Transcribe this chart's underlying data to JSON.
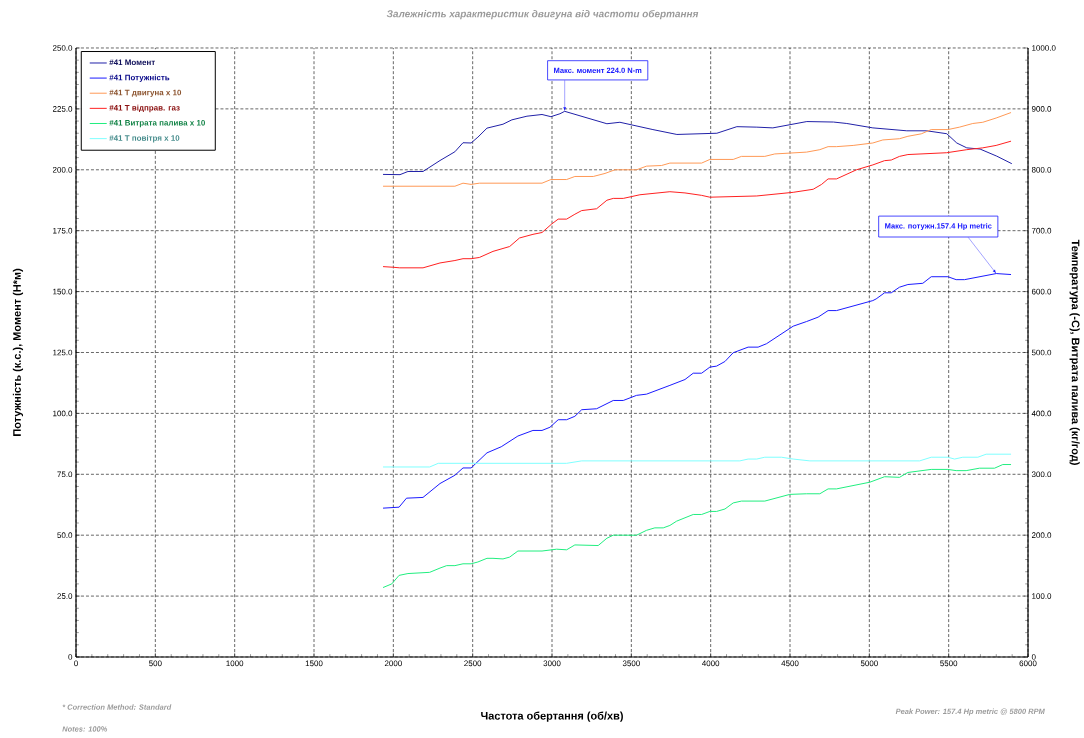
{
  "chart_data": {
    "type": "line",
    "title": "Залежність характеристик двигуна від частоти обертання",
    "xlabel": "Частота обертання (об/хв)",
    "ylabel": "Потужність (к.с.), Момент (Н*м)",
    "y2label": "Температура (-С), Витрата палива (кг/год)",
    "xlim": [
      0,
      6000
    ],
    "xticks": [
      0,
      500,
      1000,
      1500,
      2000,
      2500,
      3000,
      3500,
      4000,
      4500,
      5000,
      5500,
      6000
    ],
    "ylim": [
      0,
      250
    ],
    "yticks": [
      0,
      {
        "value": 25,
        "label": "25.0"
      },
      {
        "value": 50,
        "label": "50.0"
      },
      {
        "value": 75,
        "label": "75.0"
      },
      {
        "value": 100,
        "label": "100.0"
      },
      {
        "value": 125,
        "label": "125.0"
      },
      {
        "value": 150,
        "label": "150.0"
      },
      {
        "value": 175,
        "label": "175.0"
      },
      {
        "value": 200,
        "label": "200.0"
      },
      {
        "value": 225,
        "label": "225.0"
      },
      {
        "value": 250,
        "label": "250.0"
      }
    ],
    "y2lim": [
      0,
      1000
    ],
    "y2ticks": [
      0,
      {
        "value": 100,
        "label": "100.0"
      },
      {
        "value": 200,
        "label": "200.0"
      },
      {
        "value": 300,
        "label": "300.0"
      },
      {
        "value": 400,
        "label": "400.0"
      },
      {
        "value": 500,
        "label": "500.0"
      },
      {
        "value": 600,
        "label": "600.0"
      },
      {
        "value": 700,
        "label": "700.0"
      },
      {
        "value": 800,
        "label": "800.0"
      },
      {
        "value": 900,
        "label": "900.0"
      },
      {
        "value": 1000,
        "label": "1000.0"
      }
    ],
    "grid": true,
    "legend": "top left",
    "series": [
      {
        "name": "#41  Момент",
        "color": "#2020a8",
        "x": [
          1935,
          2042,
          2092,
          2187,
          2294,
          2388,
          2439,
          2490,
          2533,
          2590,
          2691,
          2747,
          2842,
          2937,
          2993,
          3050,
          3080,
          3346,
          3428,
          3636,
          3787,
          4039,
          4165,
          4291,
          4392,
          4606,
          4774,
          4858,
          5022,
          5236,
          5362,
          5488,
          5551,
          5614,
          5698,
          5803,
          5898
        ],
        "values": [
          198.1,
          198,
          199.3,
          199.3,
          203.8,
          207.4,
          211.1,
          211,
          213.4,
          217.1,
          218.7,
          220.5,
          222,
          222.7,
          221.8,
          223,
          224,
          218.9,
          219.5,
          216.5,
          214.5,
          215,
          217.7,
          217.5,
          217.2,
          219.8,
          219.6,
          219,
          217.2,
          216,
          216,
          214.8,
          211,
          209,
          208.5,
          205.6,
          202.5
        ]
      },
      {
        "name": "#41  Потужність",
        "color": "#1a1aff",
        "x": [
          1935,
          2036,
          2083,
          2187,
          2294,
          2388,
          2439,
          2490,
          2590,
          2680,
          2785,
          2880,
          2937,
          2987,
          3039,
          3092,
          3144,
          3187,
          3281,
          3386,
          3449,
          3533,
          3596,
          3743,
          3838,
          3890,
          3943,
          3995,
          4037,
          4090,
          4142,
          4236,
          4299,
          4352,
          4520,
          4604,
          4677,
          4740,
          4793,
          5022,
          5043,
          5096,
          5138,
          5190,
          5243,
          5337,
          5390,
          5495,
          5547,
          5600,
          5800,
          5893
        ],
        "values": [
          61.1,
          61.5,
          65.2,
          65.5,
          71.2,
          74.6,
          77.6,
          77.6,
          83.8,
          86.3,
          90.7,
          93,
          93,
          94.3,
          97.4,
          97.4,
          98.8,
          101.5,
          101.9,
          105.3,
          105.3,
          107.4,
          107.9,
          111.5,
          113.9,
          116.5,
          116.5,
          119,
          119.4,
          121.3,
          124.9,
          127.2,
          127.2,
          128.6,
          135.8,
          137.7,
          139.5,
          142.2,
          142.2,
          146.3,
          147,
          149.5,
          149.5,
          151.8,
          152.9,
          153.4,
          156.1,
          156.1,
          154.9,
          154.9,
          157.4,
          157
        ]
      },
      {
        "name": "#41 T двигуна x 10",
        "color": "#ff9955",
        "axis": "y2",
        "x": [
          1935,
          2388,
          2439,
          2490,
          2542,
          2937,
          2993,
          3092,
          3144,
          3260,
          3334,
          3397,
          3533,
          3596,
          3690,
          3743,
          3943,
          3995,
          4142,
          4194,
          4341,
          4404,
          4604,
          4688,
          4740,
          4793,
          4898,
          5022,
          5085,
          5190,
          5243,
          5327,
          5390,
          5495,
          5568,
          5652,
          5715,
          5799,
          5893
        ],
        "values": [
          773,
          773,
          778,
          776,
          778,
          778,
          784,
          784,
          789,
          789,
          794,
          800,
          800,
          806,
          807,
          811,
          811,
          817,
          817,
          822,
          822,
          826,
          829,
          833,
          838,
          838,
          840,
          844,
          849,
          851,
          855,
          859,
          866,
          866,
          870,
          876,
          878,
          885,
          894
        ]
      },
      {
        "name": "#41 T відправ. газ",
        "color": "#ff2020",
        "axis": "y2",
        "x": [
          1935,
          1997,
          2040,
          2187,
          2294,
          2388,
          2439,
          2490,
          2542,
          2628,
          2733,
          2795,
          2880,
          2937,
          2998,
          3039,
          3092,
          3144,
          3187,
          3281,
          3346,
          3386,
          3449,
          3554,
          3743,
          3838,
          3943,
          3995,
          4290,
          4520,
          4646,
          4699,
          4740,
          4793,
          4919,
          5022,
          5096,
          5138,
          5190,
          5243,
          5488,
          5614,
          5715,
          5799,
          5893
        ],
        "values": [
          641,
          640,
          639,
          639,
          647,
          651,
          654,
          654,
          656,
          666,
          674,
          688,
          694,
          697,
          711,
          719,
          719,
          727,
          733,
          736,
          750,
          753,
          753,
          759,
          764,
          762,
          758,
          755,
          757,
          763,
          768,
          776,
          785,
          785,
          800,
          808,
          815,
          816,
          822,
          825,
          828,
          833,
          836,
          840,
          847
        ]
      },
      {
        "name": "#41 Витрата палива x 10",
        "color": "#20ee80",
        "axis": "y2",
        "x": [
          1935,
          1990,
          2036,
          2092,
          2229,
          2294,
          2336,
          2388,
          2439,
          2490,
          2533,
          2590,
          2628,
          2691,
          2733,
          2785,
          2937,
          3029,
          3092,
          3144,
          3291,
          3346,
          3386,
          3533,
          3596,
          3648,
          3701,
          3743,
          3785,
          3890,
          3943,
          3995,
          4037,
          4090,
          4142,
          4194,
          4341,
          4499,
          4604,
          4688,
          4740,
          4793,
          5003,
          5096,
          5190,
          5243,
          5390,
          5495,
          5547,
          5610,
          5694,
          5789,
          5841,
          5893
        ],
        "values": [
          114,
          120,
          134,
          137,
          139,
          146,
          150,
          150,
          153,
          153,
          156,
          162,
          162,
          161,
          164,
          174,
          174,
          177,
          176,
          184,
          183,
          195,
          200,
          200,
          208,
          212,
          212,
          216,
          223,
          234,
          234,
          239,
          239,
          243,
          253,
          256,
          256,
          267,
          268,
          268,
          276,
          276,
          287,
          296,
          295,
          303,
          308,
          308,
          306,
          306,
          310,
          310,
          316,
          316
        ]
      },
      {
        "name": "#41 T повітря x 10",
        "color": "#80ffff",
        "axis": "y2",
        "x": [
          1935,
          2229,
          2283,
          3092,
          3187,
          4184,
          4236,
          4290,
          4341,
          4446,
          4520,
          4625,
          5317,
          5390,
          5495,
          5537,
          5589,
          5684,
          5736,
          5893
        ],
        "values": [
          312,
          312,
          318,
          318,
          322,
          322,
          325,
          325,
          328,
          328,
          325,
          322,
          322,
          328,
          328,
          325,
          328,
          328,
          333,
          333
        ]
      }
    ],
    "annotations": [
      {
        "text": "Макс. момент 224.0 N-m",
        "x": 3080,
        "y": 224
      },
      {
        "text": "Макс. потужн.157.4 Hp metric",
        "x": 5800,
        "y": 157.4
      },
      "* Correction Method: Standard",
      "Notes: 100%",
      "Peak Power: 157.4 Hp metric @ 5800 RPM"
    ]
  }
}
